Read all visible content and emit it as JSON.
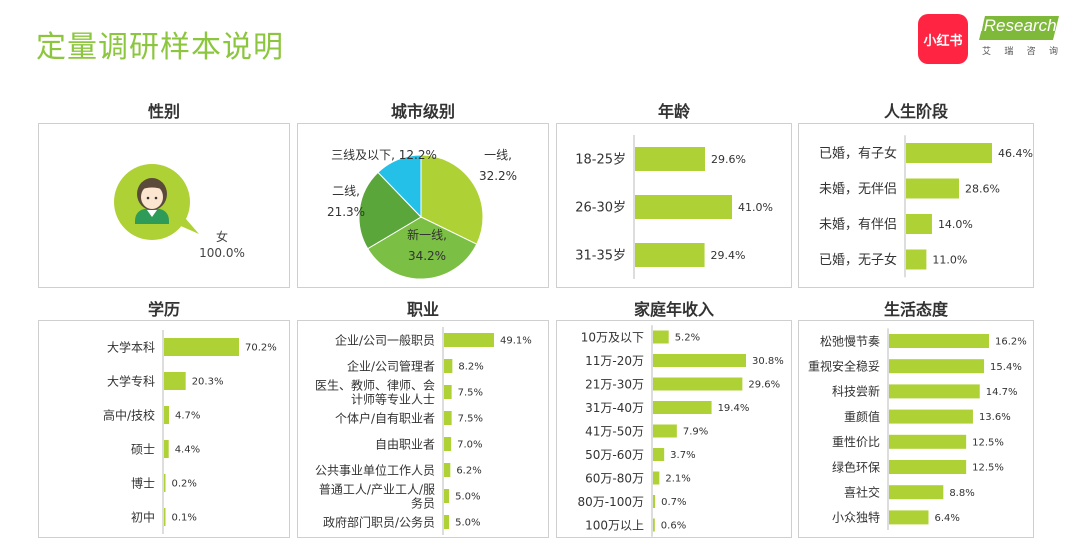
{
  "page": {
    "title": "定量调研样本说明"
  },
  "logos": {
    "xhs_text": "小红书",
    "ir_text": "iResearch",
    "ir_sub": [
      "艾",
      "瑞",
      "咨",
      "询"
    ]
  },
  "colors": {
    "accent": "#8cc63f",
    "bar": "#aed136",
    "pie": [
      "#aed136",
      "#7bbf45",
      "#5aa63b",
      "#24c0e8"
    ]
  },
  "chart_data": [
    {
      "id": "gender",
      "type": "pie",
      "title": "性别",
      "categories": [
        "女"
      ],
      "values": [
        100.0
      ],
      "labels": [
        "100.0%"
      ]
    },
    {
      "id": "city",
      "type": "pie",
      "title": "城市级别",
      "categories": [
        "一线",
        "新一线",
        "二线",
        "三线及以下"
      ],
      "values": [
        32.2,
        34.2,
        21.3,
        12.2
      ],
      "labels": [
        "32.2%",
        "34.2%",
        "21.3%",
        "12.2%"
      ]
    },
    {
      "id": "age",
      "type": "bar",
      "title": "年龄",
      "categories": [
        "18-25岁",
        "26-30岁",
        "31-35岁"
      ],
      "values": [
        29.6,
        41.0,
        29.4
      ],
      "labels": [
        "29.6%",
        "41.0%",
        "29.4%"
      ]
    },
    {
      "id": "life",
      "type": "bar",
      "title": "人生阶段",
      "categories": [
        "已婚，有子女",
        "未婚，无伴侣",
        "未婚，有伴侣",
        "已婚，无子女"
      ],
      "values": [
        46.4,
        28.6,
        14.0,
        11.0
      ],
      "labels": [
        "46.4%",
        "28.6%",
        "14.0%",
        "11.0%"
      ]
    },
    {
      "id": "edu",
      "type": "bar",
      "title": "学历",
      "categories": [
        "大学本科",
        "大学专科",
        "高中/技校",
        "硕士",
        "博士",
        "初中"
      ],
      "values": [
        70.2,
        20.3,
        4.7,
        4.4,
        0.2,
        0.1
      ],
      "labels": [
        "70.2%",
        "20.3%",
        "4.7%",
        "4.4%",
        "0.2%",
        "0.1%"
      ]
    },
    {
      "id": "job",
      "type": "bar",
      "title": "职业",
      "categories": [
        "企业/公司一般职员",
        "企业/公司管理者",
        "医生、教师、律师、会\n计师等专业人士",
        "个体户/自有职业者",
        "自由职业者",
        "公共事业单位工作人员",
        "普通工人/产业工人/服\n务员",
        "政府部门职员/公务员"
      ],
      "values": [
        49.1,
        8.2,
        7.5,
        7.5,
        7.0,
        6.2,
        5.0,
        5.0
      ],
      "labels": [
        "49.1%",
        "8.2%",
        "7.5%",
        "7.5%",
        "7.0%",
        "6.2%",
        "5.0%",
        "5.0%"
      ]
    },
    {
      "id": "income",
      "type": "bar",
      "title": "家庭年收入",
      "categories": [
        "10万及以下",
        "11万-20万",
        "21万-30万",
        "31万-40万",
        "41万-50万",
        "50万-60万",
        "60万-80万",
        "80万-100万",
        "100万以上"
      ],
      "values": [
        5.2,
        30.8,
        29.6,
        19.4,
        7.9,
        3.7,
        2.1,
        0.7,
        0.6
      ],
      "labels": [
        "5.2%",
        "30.8%",
        "29.6%",
        "19.4%",
        "7.9%",
        "3.7%",
        "2.1%",
        "0.7%",
        "0.6%"
      ]
    },
    {
      "id": "attitude",
      "type": "bar",
      "title": "生活态度",
      "categories": [
        "松弛慢节奏",
        "重视安全稳妥",
        "科技尝新",
        "重颜值",
        "重性价比",
        "绿色环保",
        "喜社交",
        "小众独特"
      ],
      "values": [
        16.2,
        15.4,
        14.7,
        13.6,
        12.5,
        12.5,
        8.8,
        6.4
      ],
      "labels": [
        "16.2%",
        "15.4%",
        "14.7%",
        "13.6%",
        "12.5%",
        "12.5%",
        "8.8%",
        "6.4%"
      ]
    }
  ]
}
